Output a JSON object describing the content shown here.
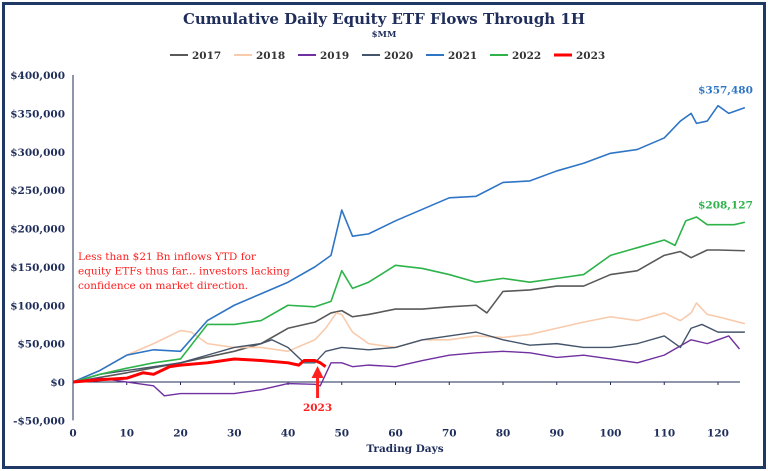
{
  "chart_data": {
    "type": "line",
    "title": "Cumulative Daily Equity ETF Flows Through 1H",
    "subtitle": "$MM",
    "xlabel": "Trading Days",
    "ylabel": "",
    "xlim": [
      0,
      125
    ],
    "ylim": [
      -50000,
      400000
    ],
    "xticks": [
      0,
      10,
      20,
      30,
      40,
      50,
      60,
      70,
      80,
      90,
      100,
      110,
      120
    ],
    "yticks": [
      -50000,
      0,
      50000,
      100000,
      150000,
      200000,
      250000,
      300000,
      350000,
      400000
    ],
    "ytick_labels": [
      "-$50,000",
      "$0",
      "$50,000",
      "$100,000",
      "$150,000",
      "$200,000",
      "$250,000",
      "$300,000",
      "$350,000",
      "$400,000"
    ],
    "grid": false,
    "legend": "top",
    "series": [
      {
        "name": "2017",
        "color": "#595959",
        "width": 1.6,
        "points": [
          [
            0,
            0
          ],
          [
            10,
            12000
          ],
          [
            20,
            25000
          ],
          [
            30,
            40000
          ],
          [
            35,
            50000
          ],
          [
            40,
            70000
          ],
          [
            45,
            78000
          ],
          [
            48,
            90000
          ],
          [
            50,
            93000
          ],
          [
            52,
            85000
          ],
          [
            55,
            88000
          ],
          [
            60,
            95000
          ],
          [
            65,
            95000
          ],
          [
            70,
            98000
          ],
          [
            75,
            100000
          ],
          [
            77,
            90000
          ],
          [
            80,
            118000
          ],
          [
            85,
            120000
          ],
          [
            90,
            125000
          ],
          [
            95,
            125000
          ],
          [
            100,
            140000
          ],
          [
            105,
            145000
          ],
          [
            110,
            165000
          ],
          [
            113,
            170000
          ],
          [
            115,
            162000
          ],
          [
            118,
            172000
          ],
          [
            120,
            172000
          ],
          [
            125,
            171000
          ]
        ]
      },
      {
        "name": "2018",
        "color": "#f8cbad",
        "width": 1.6,
        "points": [
          [
            0,
            0
          ],
          [
            5,
            15000
          ],
          [
            10,
            35000
          ],
          [
            15,
            50000
          ],
          [
            20,
            67000
          ],
          [
            22,
            65000
          ],
          [
            25,
            50000
          ],
          [
            30,
            45000
          ],
          [
            35,
            45000
          ],
          [
            40,
            40000
          ],
          [
            45,
            55000
          ],
          [
            47,
            70000
          ],
          [
            49,
            90000
          ],
          [
            50,
            88000
          ],
          [
            52,
            65000
          ],
          [
            55,
            50000
          ],
          [
            60,
            45000
          ],
          [
            65,
            55000
          ],
          [
            70,
            55000
          ],
          [
            75,
            60000
          ],
          [
            80,
            58000
          ],
          [
            85,
            62000
          ],
          [
            90,
            70000
          ],
          [
            95,
            78000
          ],
          [
            100,
            85000
          ],
          [
            105,
            80000
          ],
          [
            110,
            90000
          ],
          [
            113,
            80000
          ],
          [
            115,
            90000
          ],
          [
            116,
            103000
          ],
          [
            118,
            88000
          ],
          [
            120,
            85000
          ],
          [
            125,
            76000
          ]
        ]
      },
      {
        "name": "2019",
        "color": "#7030a0",
        "width": 1.4,
        "points": [
          [
            0,
            0
          ],
          [
            5,
            5000
          ],
          [
            10,
            0
          ],
          [
            15,
            -5000
          ],
          [
            17,
            -18000
          ],
          [
            20,
            -15000
          ],
          [
            25,
            -15000
          ],
          [
            30,
            -15000
          ],
          [
            35,
            -10000
          ],
          [
            40,
            -2000
          ],
          [
            45,
            -3000
          ],
          [
            46,
            -5000
          ],
          [
            48,
            25000
          ],
          [
            50,
            25000
          ],
          [
            52,
            20000
          ],
          [
            55,
            22000
          ],
          [
            60,
            20000
          ],
          [
            65,
            28000
          ],
          [
            70,
            35000
          ],
          [
            75,
            38000
          ],
          [
            80,
            40000
          ],
          [
            85,
            38000
          ],
          [
            90,
            32000
          ],
          [
            95,
            35000
          ],
          [
            100,
            30000
          ],
          [
            105,
            25000
          ],
          [
            110,
            35000
          ],
          [
            115,
            55000
          ],
          [
            118,
            50000
          ],
          [
            120,
            55000
          ],
          [
            122,
            60000
          ],
          [
            124,
            43000
          ]
        ]
      },
      {
        "name": "2020",
        "color": "#44546a",
        "width": 1.4,
        "points": [
          [
            0,
            0
          ],
          [
            5,
            10000
          ],
          [
            10,
            15000
          ],
          [
            15,
            20000
          ],
          [
            20,
            25000
          ],
          [
            25,
            35000
          ],
          [
            30,
            45000
          ],
          [
            35,
            50000
          ],
          [
            37,
            55000
          ],
          [
            40,
            45000
          ],
          [
            43,
            25000
          ],
          [
            45,
            25000
          ],
          [
            47,
            40000
          ],
          [
            50,
            45000
          ],
          [
            55,
            42000
          ],
          [
            60,
            45000
          ],
          [
            65,
            55000
          ],
          [
            70,
            60000
          ],
          [
            75,
            65000
          ],
          [
            80,
            55000
          ],
          [
            85,
            48000
          ],
          [
            90,
            50000
          ],
          [
            95,
            45000
          ],
          [
            100,
            45000
          ],
          [
            105,
            50000
          ],
          [
            110,
            60000
          ],
          [
            113,
            45000
          ],
          [
            115,
            70000
          ],
          [
            117,
            75000
          ],
          [
            120,
            65000
          ],
          [
            125,
            65000
          ]
        ]
      },
      {
        "name": "2021",
        "color": "#2e75c6",
        "width": 1.6,
        "points": [
          [
            0,
            0
          ],
          [
            5,
            15000
          ],
          [
            10,
            35000
          ],
          [
            15,
            42000
          ],
          [
            20,
            40000
          ],
          [
            25,
            80000
          ],
          [
            30,
            100000
          ],
          [
            35,
            115000
          ],
          [
            40,
            130000
          ],
          [
            45,
            150000
          ],
          [
            48,
            165000
          ],
          [
            50,
            224000
          ],
          [
            52,
            190000
          ],
          [
            55,
            193000
          ],
          [
            60,
            210000
          ],
          [
            65,
            225000
          ],
          [
            70,
            240000
          ],
          [
            75,
            242000
          ],
          [
            80,
            260000
          ],
          [
            85,
            262000
          ],
          [
            90,
            275000
          ],
          [
            95,
            285000
          ],
          [
            100,
            298000
          ],
          [
            105,
            303000
          ],
          [
            110,
            318000
          ],
          [
            113,
            340000
          ],
          [
            115,
            350000
          ],
          [
            116,
            337000
          ],
          [
            118,
            340000
          ],
          [
            120,
            360000
          ],
          [
            122,
            350000
          ],
          [
            125,
            357480
          ]
        ]
      },
      {
        "name": "2022",
        "color": "#2db34a",
        "width": 1.6,
        "points": [
          [
            0,
            0
          ],
          [
            5,
            10000
          ],
          [
            10,
            18000
          ],
          [
            15,
            25000
          ],
          [
            20,
            30000
          ],
          [
            25,
            75000
          ],
          [
            30,
            75000
          ],
          [
            35,
            80000
          ],
          [
            40,
            100000
          ],
          [
            45,
            98000
          ],
          [
            48,
            105000
          ],
          [
            50,
            145000
          ],
          [
            52,
            122000
          ],
          [
            55,
            130000
          ],
          [
            60,
            152000
          ],
          [
            65,
            148000
          ],
          [
            70,
            140000
          ],
          [
            75,
            130000
          ],
          [
            80,
            135000
          ],
          [
            85,
            130000
          ],
          [
            90,
            135000
          ],
          [
            95,
            140000
          ],
          [
            100,
            165000
          ],
          [
            105,
            175000
          ],
          [
            110,
            185000
          ],
          [
            112,
            178000
          ],
          [
            114,
            210000
          ],
          [
            116,
            215000
          ],
          [
            118,
            205000
          ],
          [
            120,
            205000
          ],
          [
            123,
            205000
          ],
          [
            125,
            208127
          ]
        ]
      },
      {
        "name": "2023",
        "color": "#ff0000",
        "width": 3,
        "points": [
          [
            0,
            0
          ],
          [
            5,
            3000
          ],
          [
            10,
            5000
          ],
          [
            13,
            12000
          ],
          [
            15,
            10000
          ],
          [
            18,
            20000
          ],
          [
            20,
            22000
          ],
          [
            25,
            25000
          ],
          [
            30,
            30000
          ],
          [
            35,
            28000
          ],
          [
            40,
            25000
          ],
          [
            42,
            22000
          ],
          [
            43,
            28000
          ],
          [
            45,
            28000
          ],
          [
            46,
            25000
          ],
          [
            47,
            20000
          ]
        ]
      }
    ],
    "data_labels": [
      {
        "series": "2021",
        "text": "$357,480",
        "color": "#2e75c6"
      },
      {
        "series": "2022",
        "text": "$208,127",
        "color": "#2db34a"
      }
    ],
    "annotations": {
      "text_lines": [
        "Less than $21 Bn inflows YTD for",
        "equity ETFs thus far... investors lacking",
        "confidence on market direction."
      ],
      "arrow_label": "2023",
      "arrow_day": 45.5,
      "color": "#ff2020"
    }
  }
}
